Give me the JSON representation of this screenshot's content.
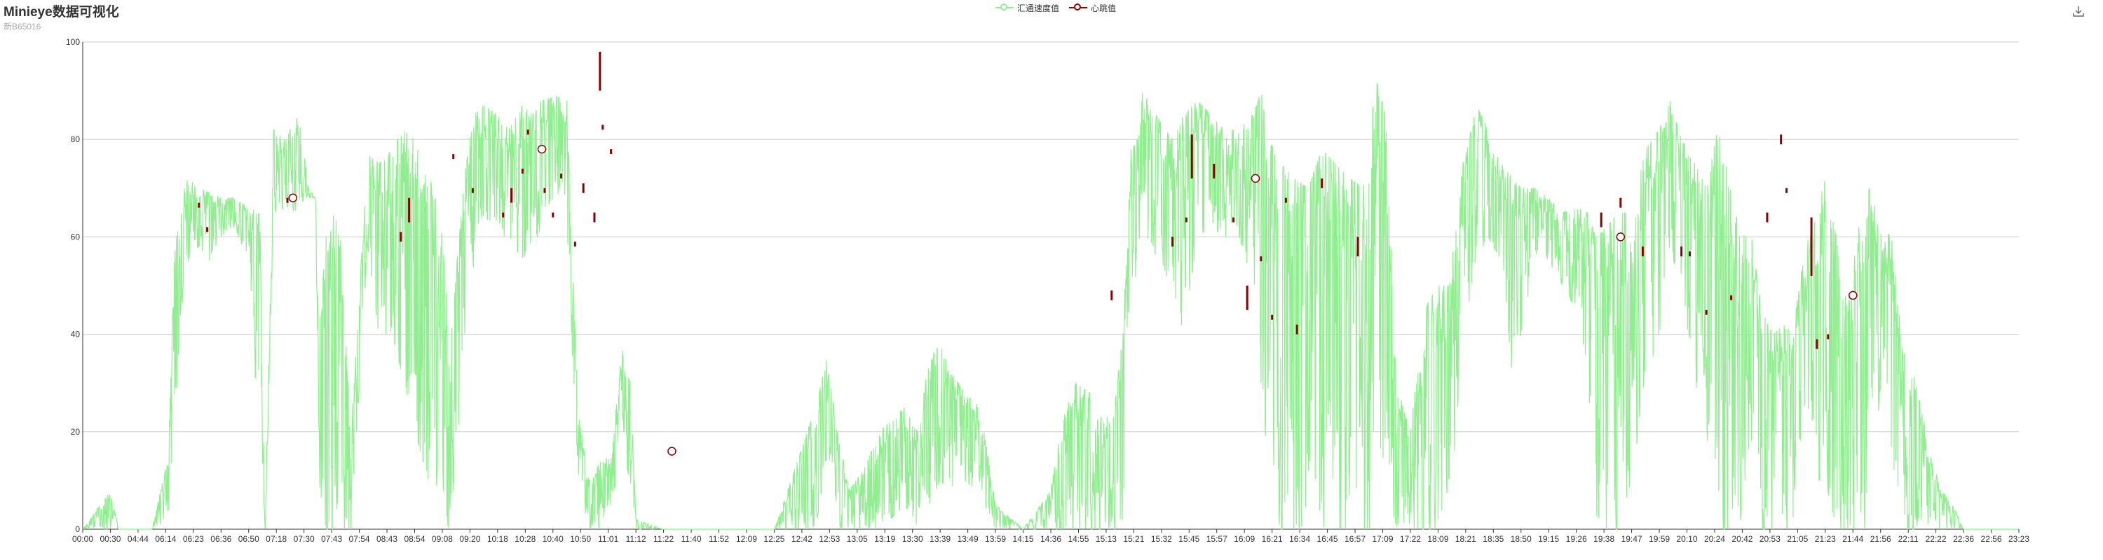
{
  "header": {
    "title": "Minieye数据可视化",
    "subtitle": "新B65016"
  },
  "toolbar": {
    "download_icon": "download-icon"
  },
  "colors": {
    "speed": "#90ee90",
    "candle": "#8b0000",
    "grid": "#cccccc",
    "axis": "#333333"
  },
  "chart_data": {
    "type": "line",
    "title": "Minieye数据可视化",
    "subtitle": "新B65016",
    "legend": [
      "汇通速度值",
      "心跳值"
    ],
    "legend_position": "top-center",
    "grid": true,
    "ylim": [
      0,
      100
    ],
    "y_ticks": [
      "0",
      "20",
      "40",
      "60",
      "80",
      "100"
    ],
    "x_tick_labels": [
      "00:00",
      "00:30",
      "04:44",
      "06:14",
      "06:23",
      "06:36",
      "06:50",
      "07:18",
      "07:30",
      "07:43",
      "07:54",
      "08:43",
      "08:54",
      "09:08",
      "09:20",
      "10:18",
      "10:28",
      "10:40",
      "10:50",
      "11:01",
      "11:12",
      "11:22",
      "11:40",
      "11:52",
      "12:09",
      "12:25",
      "12:42",
      "12:53",
      "13:05",
      "13:19",
      "13:30",
      "13:39",
      "13:49",
      "13:59",
      "14:15",
      "14:36",
      "14:55",
      "15:13",
      "15:21",
      "15:32",
      "15:45",
      "15:57",
      "16:09",
      "16:21",
      "16:34",
      "16:45",
      "16:57",
      "17:09",
      "17:22",
      "18:09",
      "18:21",
      "18:35",
      "18:50",
      "19:15",
      "19:26",
      "19:38",
      "19:47",
      "19:59",
      "20:10",
      "20:24",
      "20:42",
      "20:53",
      "21:05",
      "21:23",
      "21:44",
      "21:56",
      "22:11",
      "22:22",
      "22:36",
      "22:56",
      "23:23"
    ],
    "series": [
      {
        "name": "汇通速度值",
        "type": "line",
        "envelope": [
          [
            0,
            0,
            0
          ],
          [
            0.5,
            0,
            4
          ],
          [
            1,
            0,
            8
          ],
          [
            1.3,
            0,
            0
          ],
          [
            1.8,
            0,
            0
          ],
          [
            2.5,
            0,
            0
          ],
          [
            3.1,
            2,
            15
          ],
          [
            3.3,
            18,
            55
          ],
          [
            3.5,
            40,
            67
          ],
          [
            3.8,
            55,
            72
          ],
          [
            4.2,
            58,
            70
          ],
          [
            4.6,
            55,
            69
          ],
          [
            5,
            60,
            68
          ],
          [
            5.5,
            62,
            68
          ],
          [
            6,
            55,
            66
          ],
          [
            6.4,
            15,
            65
          ],
          [
            6.6,
            0,
            2
          ],
          [
            6.9,
            65,
            82
          ],
          [
            7.3,
            66,
            80
          ],
          [
            7.8,
            65,
            85
          ],
          [
            8.2,
            68,
            69
          ],
          [
            8.4,
            68,
            69
          ],
          [
            8.6,
            0,
            45
          ],
          [
            8.8,
            0,
            60
          ],
          [
            9,
            0,
            65
          ],
          [
            9.3,
            0,
            62
          ],
          [
            9.7,
            0,
            20
          ],
          [
            10.3,
            58,
            77
          ],
          [
            10.7,
            40,
            75
          ],
          [
            11.2,
            40,
            78
          ],
          [
            11.6,
            30,
            82
          ],
          [
            12,
            20,
            80
          ],
          [
            12.5,
            10,
            72
          ],
          [
            12.7,
            5,
            70
          ],
          [
            13,
            0,
            60
          ],
          [
            13.3,
            0,
            40
          ],
          [
            14,
            50,
            85
          ],
          [
            14.5,
            65,
            87
          ],
          [
            15,
            60,
            85
          ],
          [
            15.4,
            60,
            82
          ],
          [
            15.9,
            55,
            87
          ],
          [
            16.3,
            60,
            85
          ],
          [
            16.6,
            60,
            88
          ],
          [
            17.1,
            70,
            89
          ],
          [
            17.5,
            60,
            88
          ],
          [
            17.9,
            10,
            25
          ],
          [
            18.3,
            0,
            10
          ],
          [
            18.7,
            0,
            14
          ],
          [
            19.1,
            5,
            15
          ],
          [
            19.5,
            15,
            37
          ],
          [
            19.8,
            10,
            30
          ],
          [
            20,
            0,
            2
          ],
          [
            21,
            0,
            0
          ],
          [
            23,
            0,
            0
          ],
          [
            25,
            0,
            0
          ],
          [
            26.5,
            0,
            25
          ],
          [
            26.9,
            15,
            35
          ],
          [
            27.3,
            0,
            20
          ],
          [
            27.7,
            0,
            8
          ],
          [
            28.2,
            0,
            12
          ],
          [
            28.8,
            0,
            20
          ],
          [
            29.2,
            2,
            22
          ],
          [
            29.7,
            5,
            25
          ],
          [
            30.2,
            0,
            20
          ],
          [
            30.6,
            5,
            35
          ],
          [
            31,
            10,
            38
          ],
          [
            31.4,
            8,
            32
          ],
          [
            31.9,
            10,
            28
          ],
          [
            32.3,
            8,
            26
          ],
          [
            32.6,
            5,
            20
          ],
          [
            33,
            0,
            5
          ],
          [
            34,
            0,
            0
          ],
          [
            35,
            0,
            8
          ],
          [
            35.4,
            0,
            22
          ],
          [
            35.9,
            0,
            30
          ],
          [
            36.4,
            0,
            28
          ],
          [
            36.9,
            0,
            22
          ],
          [
            37.3,
            0,
            25
          ],
          [
            37.6,
            0,
            40
          ],
          [
            37.9,
            45,
            78
          ],
          [
            38.3,
            60,
            90
          ],
          [
            38.8,
            55,
            85
          ],
          [
            39.4,
            50,
            80
          ],
          [
            39.8,
            40,
            85
          ],
          [
            40.3,
            60,
            88
          ],
          [
            40.8,
            62,
            85
          ],
          [
            41.3,
            60,
            82
          ],
          [
            41.8,
            60,
            82
          ],
          [
            42.3,
            50,
            85
          ],
          [
            42.6,
            30,
            90
          ],
          [
            42.9,
            10,
            80
          ],
          [
            43.3,
            0,
            75
          ],
          [
            43.8,
            0,
            72
          ],
          [
            44.3,
            0,
            70
          ],
          [
            44.8,
            0,
            78
          ],
          [
            45.3,
            0,
            75
          ],
          [
            45.8,
            0,
            72
          ],
          [
            46.3,
            0,
            70
          ],
          [
            46.6,
            0,
            85
          ],
          [
            46.8,
            20,
            92
          ],
          [
            47.1,
            10,
            85
          ],
          [
            47.5,
            0,
            30
          ],
          [
            48,
            0,
            20
          ],
          [
            48.5,
            0,
            45
          ],
          [
            49,
            0,
            50
          ],
          [
            49.4,
            0,
            50
          ],
          [
            49.9,
            40,
            75
          ],
          [
            50.4,
            55,
            87
          ],
          [
            50.8,
            60,
            82
          ],
          [
            51.3,
            55,
            75
          ],
          [
            51.7,
            30,
            72
          ],
          [
            52,
            40,
            70
          ],
          [
            52.5,
            55,
            70
          ],
          [
            53,
            55,
            68
          ],
          [
            53.5,
            50,
            65
          ],
          [
            54,
            45,
            66
          ],
          [
            54.4,
            30,
            65
          ],
          [
            54.7,
            0,
            60
          ],
          [
            55.1,
            0,
            62
          ],
          [
            55.5,
            0,
            65
          ],
          [
            56,
            10,
            65
          ],
          [
            56.5,
            30,
            78
          ],
          [
            57,
            40,
            82
          ],
          [
            57.4,
            55,
            88
          ],
          [
            57.8,
            50,
            80
          ],
          [
            58.3,
            30,
            75
          ],
          [
            58.7,
            20,
            70
          ],
          [
            59.1,
            0,
            82
          ],
          [
            59.5,
            0,
            75
          ],
          [
            59.9,
            0,
            60
          ],
          [
            60.3,
            20,
            62
          ],
          [
            60.7,
            0,
            45
          ],
          [
            61.1,
            0,
            40
          ],
          [
            61.5,
            0,
            42
          ],
          [
            61.8,
            0,
            40
          ],
          [
            62.2,
            20,
            55
          ],
          [
            62.6,
            10,
            65
          ],
          [
            63,
            10,
            72
          ],
          [
            63.4,
            0,
            60
          ],
          [
            63.8,
            0,
            45
          ],
          [
            64.2,
            0,
            62
          ],
          [
            64.6,
            0,
            70
          ],
          [
            65,
            30,
            62
          ],
          [
            65.4,
            15,
            60
          ],
          [
            65.8,
            0,
            37
          ],
          [
            66.3,
            0,
            30
          ],
          [
            66.8,
            0,
            15
          ],
          [
            67.2,
            0,
            8
          ],
          [
            67.6,
            0,
            5
          ],
          [
            68,
            0,
            0
          ],
          [
            70,
            0,
            0
          ]
        ]
      },
      {
        "name": "心跳值",
        "type": "candlestick",
        "bars": [
          [
            4.2,
            66,
            67
          ],
          [
            4.5,
            61,
            62
          ],
          [
            7.4,
            67,
            68
          ],
          [
            11.5,
            59,
            61
          ],
          [
            11.8,
            63,
            68
          ],
          [
            13.4,
            76,
            77
          ],
          [
            14.1,
            69,
            70
          ],
          [
            15.2,
            64,
            65
          ],
          [
            15.5,
            67,
            70
          ],
          [
            15.9,
            73,
            74
          ],
          [
            16.1,
            81,
            82
          ],
          [
            16.7,
            69,
            70
          ],
          [
            17,
            64,
            65
          ],
          [
            17.3,
            72,
            73
          ],
          [
            17.8,
            58,
            59
          ],
          [
            18.1,
            69,
            71
          ],
          [
            18.5,
            63,
            65
          ],
          [
            18.7,
            90,
            98
          ],
          [
            18.8,
            82,
            83
          ],
          [
            19.1,
            77,
            78
          ],
          [
            37.2,
            47,
            49
          ],
          [
            39.4,
            58,
            60
          ],
          [
            39.9,
            63,
            64
          ],
          [
            40.1,
            72,
            81
          ],
          [
            40.9,
            72,
            75
          ],
          [
            41.6,
            63,
            64
          ],
          [
            42.1,
            45,
            50
          ],
          [
            42.6,
            55,
            56
          ],
          [
            43,
            43,
            44
          ],
          [
            43.5,
            67,
            68
          ],
          [
            43.9,
            40,
            42
          ],
          [
            44.8,
            70,
            72
          ],
          [
            46.1,
            56,
            60
          ],
          [
            54.9,
            62,
            65
          ],
          [
            55.6,
            66,
            68
          ],
          [
            56.4,
            56,
            58
          ],
          [
            57.8,
            56,
            58
          ],
          [
            58.1,
            56,
            57
          ],
          [
            58.7,
            44,
            45
          ],
          [
            59.6,
            47,
            48
          ],
          [
            60.9,
            63,
            65
          ],
          [
            61.4,
            79,
            81
          ],
          [
            61.6,
            69,
            70
          ],
          [
            62.5,
            52,
            64
          ],
          [
            62.7,
            37,
            39
          ],
          [
            63.1,
            39,
            40
          ]
        ],
        "markers": [
          [
            7.6,
            68
          ],
          [
            16.6,
            78
          ],
          [
            21.3,
            16
          ],
          [
            42.4,
            72
          ],
          [
            55.6,
            60
          ],
          [
            64,
            48
          ]
        ]
      }
    ]
  }
}
